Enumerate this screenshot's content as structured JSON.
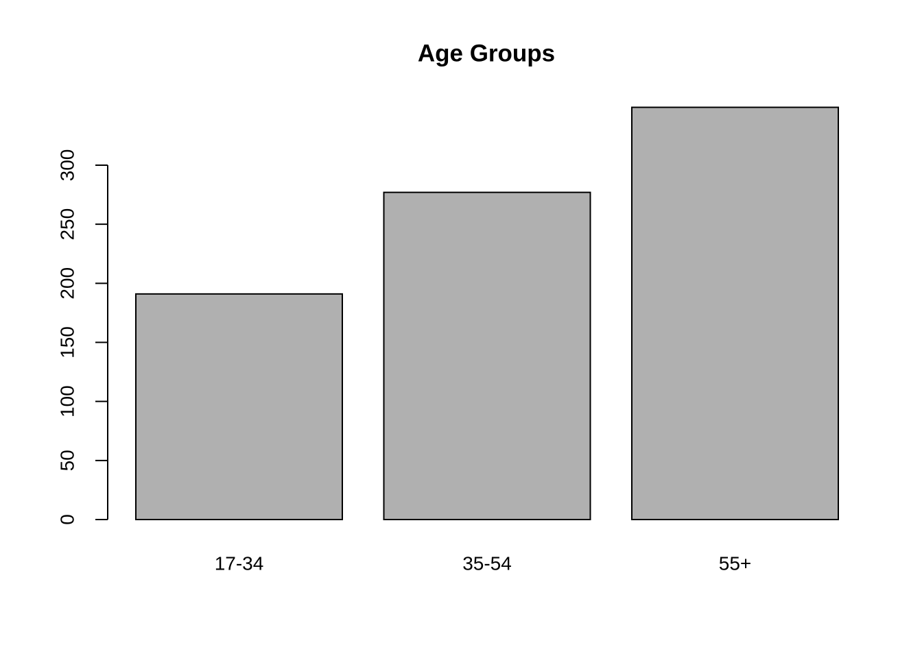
{
  "chart_data": {
    "type": "bar",
    "title": "Age Groups",
    "categories": [
      "17-34",
      "35-54",
      "55+"
    ],
    "values": [
      191,
      277,
      349
    ],
    "color": "#b0b0b0",
    "ylim": [
      0,
      363
    ],
    "yticks": [
      0,
      50,
      100,
      150,
      200,
      250,
      300
    ],
    "grid": false
  }
}
